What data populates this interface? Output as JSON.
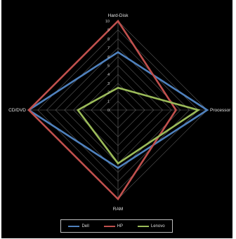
{
  "chart_data": {
    "type": "radar",
    "axes": [
      "Hard-Disk",
      "Processor",
      "RAM",
      "CD/DVD"
    ],
    "range": [
      0,
      10
    ],
    "ticks": [
      "0",
      "1",
      "2",
      "3",
      "4",
      "5",
      "6",
      "7",
      "8",
      "9",
      "10"
    ],
    "series": [
      {
        "name": "Dell",
        "values": [
          6.5,
          10,
          6.5,
          10
        ],
        "color": "#4f81bd"
      },
      {
        "name": "HP",
        "values": [
          10,
          6.5,
          10,
          10
        ],
        "color": "#c0504d"
      },
      {
        "name": "Lenovo",
        "values": [
          2.5,
          9,
          6,
          4.5
        ],
        "color": "#9bbb59"
      }
    ],
    "grid": true,
    "legend_position": "bottom"
  }
}
